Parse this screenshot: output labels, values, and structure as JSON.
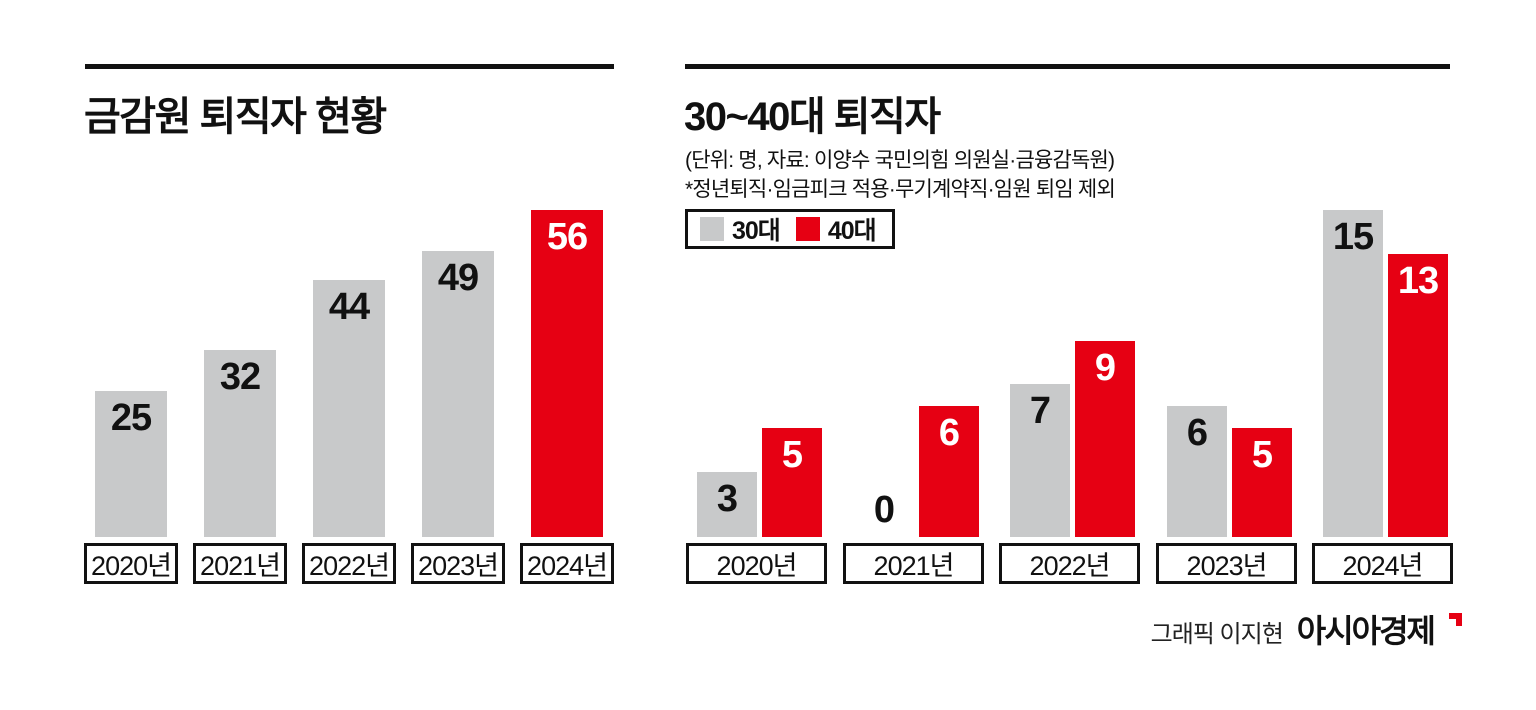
{
  "colors": {
    "background": "#ffffff",
    "bar_gray": "#c8c9ca",
    "bar_red": "#e60013",
    "text": "#111111",
    "label_on_red": "#ffffff"
  },
  "left_chart": {
    "title": "금감원 퇴직자 현황"
  },
  "right_chart": {
    "title": "30~40대 퇴직자",
    "subtitle": "(단위: 명, 자료: 이양수 국민의힘 의원실·금융감독원)",
    "note": "*정년퇴직·임금피크 적용·무기계약직·임원 퇴임 제외",
    "legend": [
      {
        "label": "30대",
        "color": "gray"
      },
      {
        "label": "40대",
        "color": "red"
      }
    ]
  },
  "credit": {
    "prefix": "그래픽 이지현",
    "brand": "아시아경제"
  },
  "chart_data": [
    {
      "type": "bar",
      "title": "금감원 퇴직자 현황",
      "categories": [
        "2020년",
        "2021년",
        "2022년",
        "2023년",
        "2024년"
      ],
      "values": [
        25,
        32,
        44,
        49,
        56
      ],
      "bar_colors": [
        "gray",
        "gray",
        "gray",
        "gray",
        "red"
      ],
      "xlabel": "",
      "ylabel": "",
      "ylim": [
        0,
        56
      ],
      "grid": false,
      "value_labels": "inside-top"
    },
    {
      "type": "bar",
      "title": "30~40대 퇴직자",
      "subtitle": "(단위: 명, 자료: 이양수 국민의힘 의원실·금융감독원)",
      "note": "*정년퇴직·임금피크 적용·무기계약직·임원 퇴임 제외",
      "categories": [
        "2020년",
        "2021년",
        "2022년",
        "2023년",
        "2024년"
      ],
      "series": [
        {
          "name": "30대",
          "color": "gray",
          "values": [
            3,
            0,
            7,
            6,
            15
          ]
        },
        {
          "name": "40대",
          "color": "red",
          "values": [
            5,
            6,
            9,
            5,
            13
          ]
        }
      ],
      "xlabel": "",
      "ylabel": "",
      "ylim": [
        0,
        15
      ],
      "grid": false,
      "legend_position": "top-left",
      "value_labels": "inside-top"
    }
  ]
}
